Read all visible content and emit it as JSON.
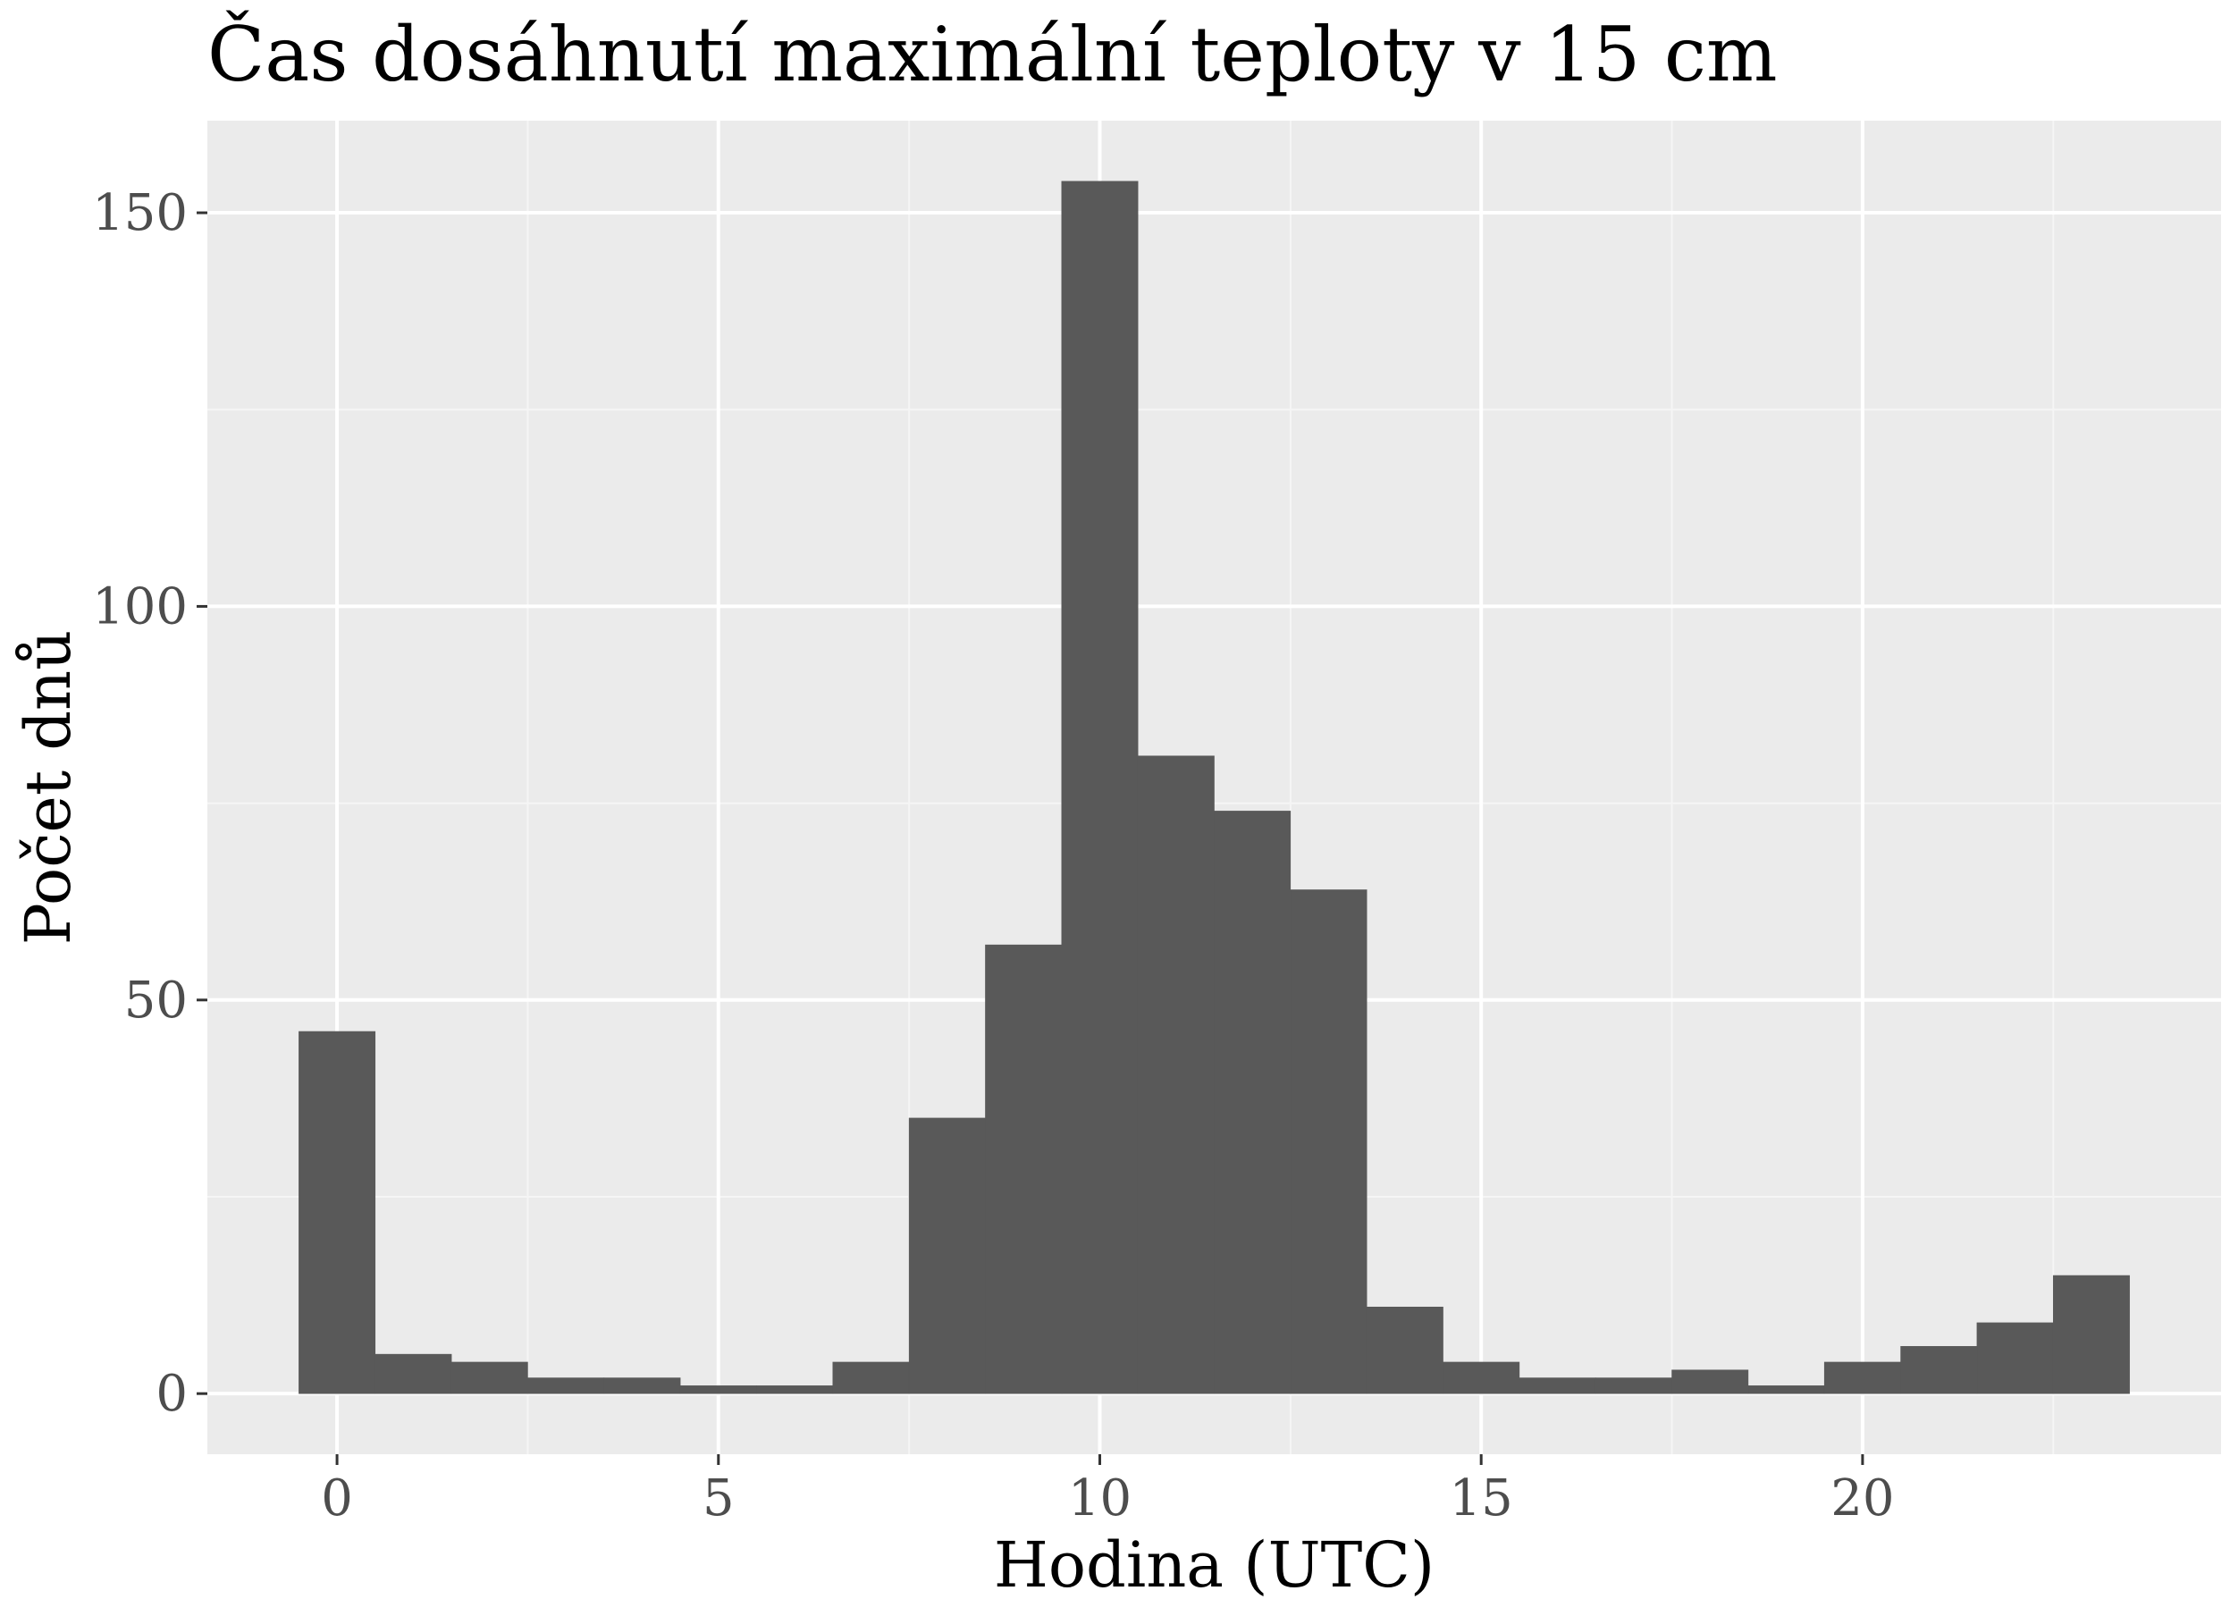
{
  "chart_data": {
    "type": "bar",
    "title": "Čas dosáhnutí maximální teploty v 15 cm",
    "xlabel": "Hodina (UTC)",
    "ylabel": "Počet dnů",
    "x": [
      0,
      1,
      2,
      3,
      4,
      5,
      6,
      7,
      8,
      9,
      10,
      11,
      12,
      13,
      14,
      15,
      16,
      17,
      18,
      19,
      20,
      21,
      22,
      23
    ],
    "values": [
      46,
      5,
      4,
      2,
      2,
      1,
      1,
      4,
      35,
      57,
      154,
      81,
      74,
      64,
      11,
      4,
      2,
      2,
      3,
      1,
      4,
      6,
      9,
      15
    ],
    "bin_width": 1,
    "xlim": [
      -1.7,
      24.7
    ],
    "ylim": [
      -7.7,
      161.7
    ],
    "x_ticks": [
      0,
      5,
      10,
      15,
      20
    ],
    "x_tick_labels": [
      "0",
      "5",
      "10",
      "15",
      "20"
    ],
    "y_ticks": [
      0,
      50,
      100,
      150
    ],
    "y_tick_labels": [
      "0",
      "50",
      "100",
      "150"
    ],
    "grid": true,
    "colors": {
      "bar_fill": "#595959",
      "panel_background": "#ebebeb",
      "grid_major": "#ffffff",
      "grid_minor": "#f5f5f5",
      "tick_label": "#4d4d4d",
      "tick_mark": "#333333"
    }
  }
}
